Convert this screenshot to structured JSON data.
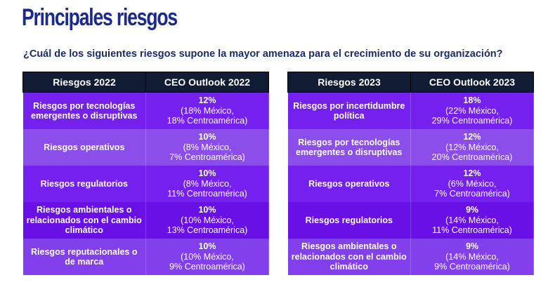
{
  "title": "Principales riesgos",
  "question": "¿Cuál de los siguientes riesgos supone la mayor amenaza para el crecimiento de su organización?",
  "tables": [
    {
      "headers": [
        "Riesgos 2022",
        "CEO Outlook 2022"
      ],
      "rows": [
        {
          "risk": "Riesgos por tecnologías emergentes o disruptivas",
          "pct": "12%",
          "mx": "(18% México,",
          "ca": "18% Centroamérica)"
        },
        {
          "risk": "Riesgos operativos",
          "pct": "10%",
          "mx": "(8% México,",
          "ca": "7% Centroamérica)"
        },
        {
          "risk": "Riesgos regulatorios",
          "pct": "10%",
          "mx": "(8% México,",
          "ca": "11% Centroamérica)"
        },
        {
          "risk": "Riesgos ambientales o relacionados con el cambio climático",
          "pct": "10%",
          "mx": "(10% México,",
          "ca": "13% Centroamérica)"
        },
        {
          "risk": "Riesgos reputacionales o de marca",
          "pct": "10%",
          "mx": "(10% México,",
          "ca": "9% Centroamérica)"
        }
      ]
    },
    {
      "headers": [
        "Riesgos 2023",
        "CEO Outlook 2023"
      ],
      "rows": [
        {
          "risk": "Riesgos por incertidumbre política",
          "pct": "18%",
          "mx": "(22% México,",
          "ca": "29% Centroamérica)"
        },
        {
          "risk": "Riesgos por tecnologías emergentes o disruptivas",
          "pct": "12%",
          "mx": "(12% México,",
          "ca": "20% Centroamérica)"
        },
        {
          "risk": "Riesgos operativos",
          "pct": "12%",
          "mx": "(6% México,",
          "ca": "7% Centroamérica)"
        },
        {
          "risk": "Riesgos regulatorios",
          "pct": "9%",
          "mx": "(14% México,",
          "ca": "11% Centroamérica)"
        },
        {
          "risk": "Riesgos ambientales o relacionados con el cambio climático",
          "pct": "9%",
          "mx": "(14% México,",
          "ca": "9% Centroamérica)"
        }
      ]
    }
  ]
}
